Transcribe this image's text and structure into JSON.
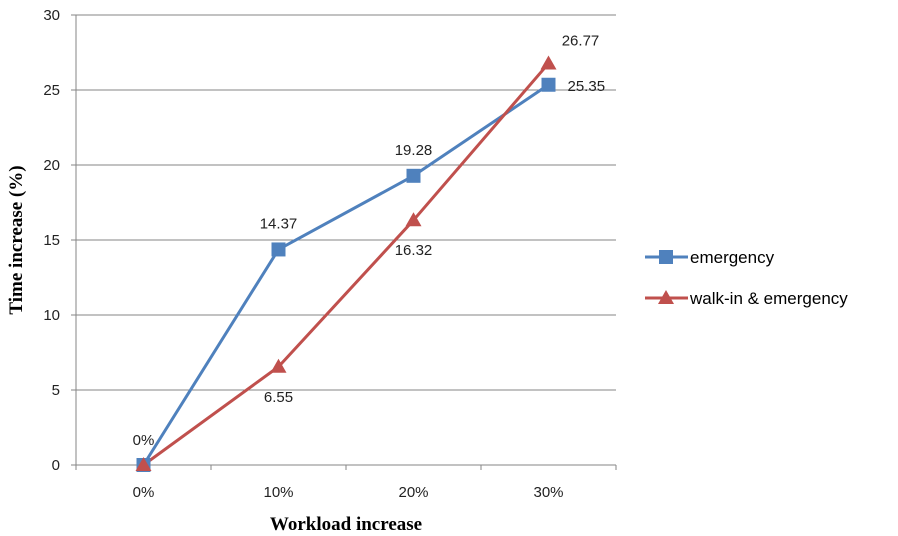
{
  "chart_data": {
    "type": "line",
    "categories": [
      "0%",
      "10%",
      "20%",
      "30%"
    ],
    "series": [
      {
        "name": "emergency",
        "values": [
          0,
          14.37,
          19.28,
          25.35
        ],
        "labels": [
          "0%",
          "14.37",
          "19.28",
          "25.35"
        ],
        "color": "#4F81BD",
        "marker": "square"
      },
      {
        "name": "walk-in & emergency",
        "values": [
          0,
          6.55,
          16.32,
          26.77
        ],
        "labels": [
          "",
          "6.55",
          "16.32",
          "26.77"
        ],
        "color": "#C0504D",
        "marker": "triangle"
      }
    ],
    "xlabel": "Workload increase",
    "ylabel": "Time increase (%)",
    "ylim": [
      0,
      30
    ],
    "yticks": [
      "0",
      "5",
      "10",
      "15",
      "20",
      "25",
      "30"
    ],
    "grid": true,
    "legend": "right"
  }
}
